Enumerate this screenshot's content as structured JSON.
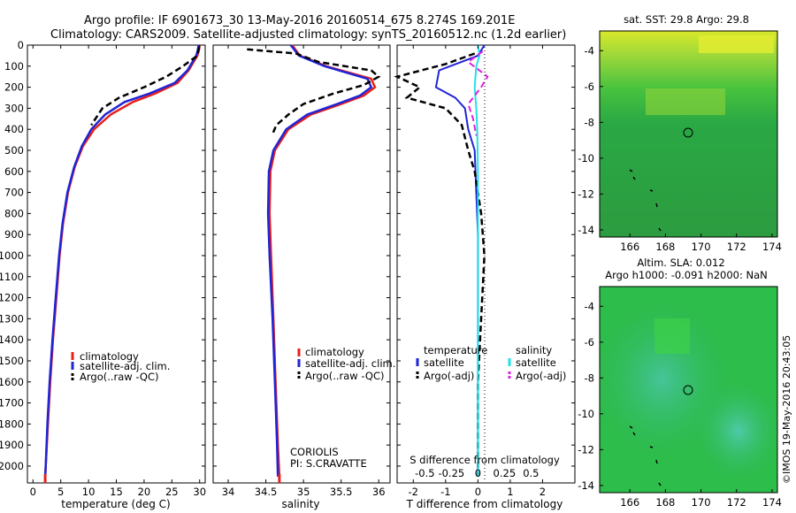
{
  "header": {
    "line1": "Argo profile: IF 6901673_30 13-May-2016 20160514_675 8.274S 169.201E",
    "line2": "Climatology: CARS2009. Satellite-adjusted climatology: synTS_20160512.nc (1.2d earlier)"
  },
  "panels": {
    "temperature": {
      "xlabel": "temperature (deg C)",
      "xticks": [
        "0",
        "5",
        "10",
        "15",
        "20",
        "25",
        "30"
      ],
      "legend": [
        "climatology",
        "satellite-adj. clim.",
        "Argo(..raw -QC)"
      ]
    },
    "salinity": {
      "xlabel": "salinity",
      "xticks": [
        "34",
        "34.5",
        "35",
        "35.5",
        "36"
      ],
      "legend": [
        "climatology",
        "satellite-adj. clim.",
        "Argo(..raw -QC)"
      ],
      "note1": "CORIOLIS",
      "note2": "PI: S.CRAVATTE"
    },
    "difference": {
      "xlabel": "T difference from climatology",
      "top_label": "S difference from climatology",
      "s_ticks": [
        "-0.5",
        "-0.25",
        "0",
        "0.25",
        "0.5"
      ],
      "t_ticks": [
        "-2",
        "-1",
        "0",
        "1",
        "2"
      ],
      "legend_temp_title": "temperature",
      "legend_sal_title": "salinity",
      "legend_temp": [
        "satellite",
        "Argo(-adj)"
      ],
      "legend_sal": [
        "satellite",
        "Argo(-adj)"
      ]
    },
    "depth_ticks": [
      "0",
      "100",
      "200",
      "300",
      "400",
      "500",
      "600",
      "700",
      "800",
      "900",
      "1000",
      "1100",
      "1200",
      "1300",
      "1400",
      "1500",
      "1600",
      "1700",
      "1800",
      "1900",
      "2000"
    ]
  },
  "maps": {
    "sst_title": "sat. SST: 29.8 Argo: 29.8",
    "sla_title1": "Altim. SLA: 0.012",
    "sla_title2": "Argo h1000: -0.091 h2000: NaN",
    "lat_ticks": [
      "-4",
      "-6",
      "-8",
      "-10",
      "-12",
      "-14"
    ],
    "lon_ticks": [
      "166",
      "168",
      "170",
      "172",
      "174"
    ]
  },
  "side_stamp": "©IMOS 19-May-2016 20:43:05",
  "colors": {
    "climatology": "#e8201c",
    "satellite": "#1f24d6",
    "argo": "#000000",
    "sal_satellite": "#23e0e8",
    "sal_argo": "#e020e0"
  },
  "chart_data": [
    {
      "type": "line",
      "xlabel": "temperature (deg C)",
      "ylabel": "",
      "xlim": [
        -1,
        31
      ],
      "ylim": [
        2080,
        0
      ],
      "series": [
        {
          "name": "climatology",
          "points": [
            [
              30,
              0
            ],
            [
              29.9,
              20
            ],
            [
              29.6,
              50
            ],
            [
              28,
              120
            ],
            [
              26,
              180
            ],
            [
              22,
              230
            ],
            [
              18,
              270
            ],
            [
              14,
              330
            ],
            [
              11,
              400
            ],
            [
              9,
              480
            ],
            [
              7.5,
              580
            ],
            [
              6.3,
              700
            ],
            [
              5.4,
              850
            ],
            [
              4.8,
              1000
            ],
            [
              4.2,
              1200
            ],
            [
              3.6,
              1400
            ],
            [
              3.1,
              1600
            ],
            [
              2.7,
              1800
            ],
            [
              2.3,
              2000
            ],
            [
              2.2,
              2050
            ]
          ]
        },
        {
          "name": "satellite-adj. clim.",
          "points": [
            [
              29.8,
              0
            ],
            [
              29.7,
              20
            ],
            [
              29.4,
              50
            ],
            [
              27.8,
              120
            ],
            [
              25.5,
              180
            ],
            [
              21,
              230
            ],
            [
              16.5,
              270
            ],
            [
              13,
              330
            ],
            [
              10.5,
              400
            ],
            [
              8.8,
              480
            ],
            [
              7.4,
              580
            ],
            [
              6.2,
              700
            ],
            [
              5.3,
              850
            ],
            [
              4.7,
              1000
            ],
            [
              4.1,
              1200
            ],
            [
              3.5,
              1400
            ],
            [
              3,
              1600
            ],
            [
              2.6,
              1800
            ],
            [
              2.3,
              2000
            ],
            [
              2.2,
              2050
            ]
          ]
        },
        {
          "name": "Argo(..raw -QC)",
          "points": [
            [
              29.9,
              10
            ],
            [
              29.6,
              50
            ],
            [
              27,
              100
            ],
            [
              24,
              150
            ],
            [
              20,
              200
            ],
            [
              15.5,
              250
            ],
            [
              12.5,
              300
            ],
            [
              10.5,
              380
            ]
          ]
        }
      ]
    },
    {
      "type": "line",
      "xlabel": "salinity",
      "ylabel": "",
      "xlim": [
        33.8,
        36.15
      ],
      "ylim": [
        2080,
        0
      ],
      "series": [
        {
          "name": "climatology",
          "points": [
            [
              34.85,
              0
            ],
            [
              34.95,
              50
            ],
            [
              35.3,
              100
            ],
            [
              35.9,
              160
            ],
            [
              35.95,
              200
            ],
            [
              35.8,
              240
            ],
            [
              35.5,
              280
            ],
            [
              35.1,
              330
            ],
            [
              34.8,
              400
            ],
            [
              34.62,
              500
            ],
            [
              34.56,
              600
            ],
            [
              34.55,
              800
            ],
            [
              34.57,
              1000
            ],
            [
              34.6,
              1300
            ],
            [
              34.63,
              1600
            ],
            [
              34.66,
              1900
            ],
            [
              34.68,
              2050
            ]
          ]
        },
        {
          "name": "satellite-adj. clim.",
          "points": [
            [
              34.83,
              0
            ],
            [
              34.94,
              50
            ],
            [
              35.28,
              100
            ],
            [
              35.85,
              160
            ],
            [
              35.9,
              200
            ],
            [
              35.75,
              240
            ],
            [
              35.45,
              280
            ],
            [
              35.05,
              330
            ],
            [
              34.77,
              400
            ],
            [
              34.6,
              500
            ],
            [
              34.54,
              600
            ],
            [
              34.53,
              800
            ],
            [
              34.55,
              1000
            ],
            [
              34.59,
              1300
            ],
            [
              34.62,
              1600
            ],
            [
              34.65,
              1900
            ],
            [
              34.66,
              2050
            ]
          ]
        },
        {
          "name": "Argo(..raw -QC)",
          "points": [
            [
              34.25,
              20
            ],
            [
              34.9,
              40
            ],
            [
              35.2,
              80
            ],
            [
              35.9,
              120
            ],
            [
              36,
              150
            ],
            [
              35.8,
              190
            ],
            [
              35.4,
              230
            ],
            [
              35,
              280
            ],
            [
              34.8,
              330
            ],
            [
              34.64,
              380
            ],
            [
              34.58,
              430
            ]
          ]
        }
      ]
    },
    {
      "type": "line",
      "xlabel": "T difference from climatology",
      "ylabel": "",
      "xlim": [
        -2.5,
        3
      ],
      "ylim": [
        2080,
        0
      ],
      "series": [
        {
          "name": "temperature satellite",
          "points": [
            [
              0.2,
              0
            ],
            [
              0,
              50
            ],
            [
              -1.2,
              120
            ],
            [
              -1.3,
              200
            ],
            [
              -0.7,
              250
            ],
            [
              -0.4,
              300
            ],
            [
              -0.3,
              400
            ],
            [
              -0.1,
              500
            ],
            [
              -0.05,
              700
            ],
            [
              0,
              900
            ],
            [
              0,
              1200
            ],
            [
              0,
              1600
            ],
            [
              0,
              2050
            ]
          ]
        },
        {
          "name": "temperature Argo(-adj)",
          "points": [
            [
              -0.1,
              40
            ],
            [
              -1,
              90
            ],
            [
              -2.5,
              150
            ],
            [
              -1.8,
              200
            ],
            [
              -2.2,
              250
            ],
            [
              -1,
              300
            ],
            [
              -0.5,
              380
            ],
            [
              -0.3,
              500
            ],
            [
              -0.1,
              600
            ],
            [
              0.1,
              800
            ],
            [
              0.2,
              1000
            ],
            [
              0.1,
              1300
            ],
            [
              0,
              1600
            ],
            [
              0,
              2050
            ]
          ]
        },
        {
          "name": "salinity satellite",
          "points": [
            [
              0,
              0
            ],
            [
              0.05,
              50
            ],
            [
              -0.05,
              100
            ],
            [
              -0.1,
              200
            ],
            [
              -0.05,
              300
            ],
            [
              -0.02,
              400
            ],
            [
              0,
              600
            ],
            [
              0,
              1000
            ],
            [
              0,
              1500
            ],
            [
              0,
              2050
            ]
          ]
        },
        {
          "name": "salinity Argo(-adj)",
          "points": [
            [
              0.15,
              30
            ],
            [
              -0.3,
              80
            ],
            [
              0.3,
              150
            ],
            [
              0.1,
              200
            ],
            [
              -0.3,
              280
            ],
            [
              -0.15,
              350
            ],
            [
              -0.05,
              430
            ]
          ]
        }
      ]
    }
  ]
}
